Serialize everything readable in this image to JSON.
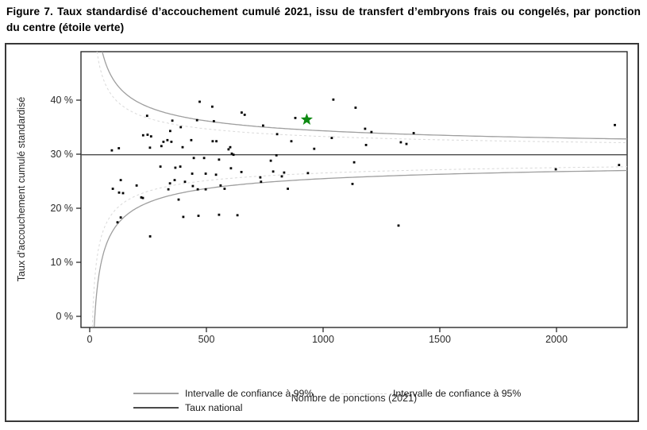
{
  "figure": {
    "title": "Figure 7. Taux standardisé d’accouchement cumulé 2021, issu de transfert d’embryons frais ou congelés, par ponction du centre (étoile verte)"
  },
  "chart_data": {
    "type": "scatter",
    "title": "",
    "xlabel": "Nombre de ponctions (2021)",
    "ylabel": "Taux d'accouchement cumulé standardisé",
    "x_ticks": [
      0,
      500,
      1000,
      1500,
      2000
    ],
    "y_ticks": [
      0,
      10,
      20,
      30,
      40
    ],
    "y_tick_suffix": " %",
    "xlim": [
      -40,
      2303
    ],
    "ylim": [
      -2,
      49
    ],
    "grid": "off",
    "legend_position": "bottom",
    "national_rate_pct": 29.9,
    "ci99_halfwidth_coef": 140,
    "ci95_halfwidth_coef": 107,
    "center_star": {
      "x": 930,
      "y": 36.4,
      "meaning": "ponction du centre (étoile verte)"
    },
    "points": [
      [
        95,
        30.7
      ],
      [
        99,
        23.6
      ],
      [
        119,
        17.4
      ],
      [
        125,
        31.1
      ],
      [
        126,
        22.9
      ],
      [
        133,
        25.2
      ],
      [
        133,
        18.3
      ],
      [
        143,
        22.8
      ],
      [
        201,
        24.2
      ],
      [
        221,
        22.0
      ],
      [
        228,
        21.9
      ],
      [
        229,
        33.5
      ],
      [
        246,
        37.1
      ],
      [
        248,
        33.6
      ],
      [
        258,
        31.2
      ],
      [
        259,
        14.8
      ],
      [
        263,
        33.3
      ],
      [
        303,
        27.7
      ],
      [
        307,
        31.5
      ],
      [
        316,
        32.3
      ],
      [
        333,
        32.6
      ],
      [
        337,
        23.5
      ],
      [
        344,
        24.6
      ],
      [
        345,
        34.3
      ],
      [
        350,
        32.3
      ],
      [
        354,
        36.2
      ],
      [
        364,
        25.2
      ],
      [
        367,
        27.5
      ],
      [
        381,
        21.6
      ],
      [
        388,
        27.7
      ],
      [
        390,
        35.0
      ],
      [
        398,
        31.3
      ],
      [
        401,
        18.4
      ],
      [
        408,
        24.9
      ],
      [
        435,
        32.6
      ],
      [
        439,
        26.4
      ],
      [
        442,
        24.1
      ],
      [
        446,
        29.3
      ],
      [
        460,
        36.3
      ],
      [
        463,
        23.5
      ],
      [
        466,
        18.6
      ],
      [
        471,
        39.7
      ],
      [
        490,
        29.3
      ],
      [
        497,
        26.4
      ],
      [
        497,
        23.5
      ],
      [
        525,
        38.8
      ],
      [
        527,
        32.4
      ],
      [
        532,
        36.1
      ],
      [
        541,
        26.2
      ],
      [
        543,
        32.4
      ],
      [
        554,
        29.0
      ],
      [
        554,
        18.8
      ],
      [
        561,
        24.2
      ],
      [
        578,
        23.6
      ],
      [
        595,
        30.9
      ],
      [
        602,
        31.3
      ],
      [
        605,
        27.4
      ],
      [
        609,
        30.1
      ],
      [
        616,
        29.9
      ],
      [
        633,
        18.7
      ],
      [
        650,
        26.7
      ],
      [
        651,
        37.7
      ],
      [
        664,
        37.3
      ],
      [
        731,
        25.7
      ],
      [
        734,
        24.9
      ],
      [
        743,
        35.3
      ],
      [
        776,
        28.8
      ],
      [
        786,
        26.8
      ],
      [
        800,
        29.8
      ],
      [
        803,
        33.7
      ],
      [
        823,
        25.9
      ],
      [
        833,
        26.6
      ],
      [
        849,
        23.6
      ],
      [
        864,
        32.4
      ],
      [
        881,
        36.7
      ],
      [
        935,
        26.5
      ],
      [
        962,
        31.0
      ],
      [
        1037,
        33.0
      ],
      [
        1044,
        40.1
      ],
      [
        1126,
        24.5
      ],
      [
        1133,
        28.5
      ],
      [
        1139,
        38.6
      ],
      [
        1180,
        34.7
      ],
      [
        1184,
        31.7
      ],
      [
        1207,
        34.1
      ],
      [
        1323,
        16.8
      ],
      [
        1333,
        32.2
      ],
      [
        1357,
        31.9
      ],
      [
        1388,
        33.9
      ],
      [
        1997,
        27.2
      ],
      [
        2250,
        35.4
      ],
      [
        2268,
        28.0
      ]
    ],
    "legend": [
      {
        "label": "Intervalle de confiance à 99%",
        "style": "solid"
      },
      {
        "label": "Intervalle de confiance à 95%",
        "style": "dashed"
      },
      {
        "label": "Taux national",
        "style": "solid"
      }
    ],
    "colors": {
      "point": "#000000",
      "star": "#0e8a12",
      "ci99": "#9e9e9e",
      "ci95": "#d9d9d9",
      "national": "#4a4a4a",
      "axis": "#1a1a1a"
    }
  }
}
